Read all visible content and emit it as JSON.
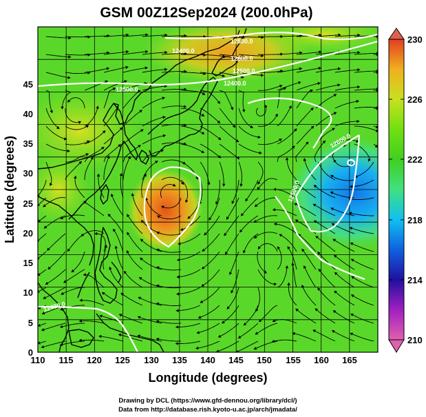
{
  "title": "GSM 00Z12Sep2024 (200.0hPa)",
  "map": {
    "xlabel": "Longitude (degrees)",
    "ylabel": "Latitude  (degrees)",
    "x_ticks": [
      "110",
      "115",
      "120",
      "125",
      "130",
      "135",
      "140",
      "145",
      "150",
      "155",
      "160",
      "165"
    ],
    "y_ticks": [
      "0",
      "5",
      "10",
      "15",
      "20",
      "25",
      "30",
      "35",
      "40",
      "45"
    ],
    "xlim": [
      110,
      170
    ],
    "ylim": [
      0,
      50
    ],
    "grid": true,
    "field": "temperature",
    "colorbar": {
      "ticks": [
        "210",
        "214",
        "218",
        "222",
        "226",
        "230"
      ],
      "min": 210,
      "max": 230,
      "colors": [
        "#e060b0",
        "#a020c0",
        "#2010a0",
        "#1060e0",
        "#10c0f0",
        "#40e080",
        "#40d020",
        "#70e010",
        "#c8e020",
        "#f0b020",
        "#f06010",
        "#e04020"
      ]
    },
    "contour_labels": [
      "12400.0",
      "12500.0",
      "12600.0",
      "12500.0",
      "12400.0",
      "12500.0",
      "12600.0",
      "12500.0",
      "12400.0"
    ],
    "features": {
      "warm_core_center": [
        133,
        24
      ],
      "cold_area_center": [
        166,
        25
      ],
      "warm_area_north": [
        143,
        46
      ]
    }
  },
  "credits": {
    "line1": "Drawing by DCL (https://www.gfd-dennou.org/library/dcl/)",
    "line2": "Data from http://database.rish.kyoto-u.ac.jp/arch/jmadata/"
  }
}
